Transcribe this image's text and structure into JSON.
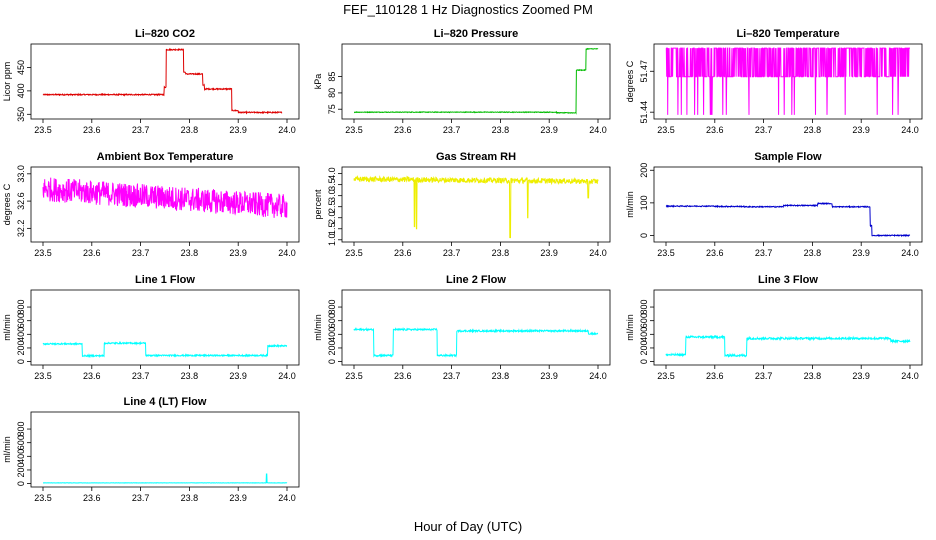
{
  "title": "FEF_110128  1 Hz Diagnostics Zoomed PM",
  "xlabel": "Hour of Day (UTC)",
  "chart_data": [
    {
      "type": "line",
      "title": "Li–820 CO2",
      "ylabel": "Licor ppm",
      "color": "#dd0000",
      "xlim": [
        23.5,
        24.0
      ],
      "ylim": [
        340,
        500
      ],
      "xticks": [
        "23.5",
        "23.6",
        "23.7",
        "23.8",
        "23.9",
        "24.0"
      ],
      "yticks": [
        "350",
        "400",
        "450"
      ],
      "segments": [
        [
          23.5,
          23.748,
          392
        ],
        [
          23.748,
          23.752,
          408
        ],
        [
          23.752,
          23.788,
          488
        ],
        [
          23.788,
          23.792,
          440
        ],
        [
          23.792,
          23.827,
          436
        ],
        [
          23.827,
          23.831,
          412
        ],
        [
          23.831,
          23.887,
          404
        ],
        [
          23.887,
          23.9,
          358
        ],
        [
          23.9,
          23.99,
          354
        ]
      ],
      "noise": 1.2
    },
    {
      "type": "line",
      "title": "Li–820 Pressure",
      "ylabel": "kPa",
      "color": "#00bb00",
      "xlim": [
        23.5,
        24.0
      ],
      "ylim": [
        72,
        95
      ],
      "xticks": [
        "23.5",
        "23.6",
        "23.7",
        "23.8",
        "23.9",
        "24.0"
      ],
      "yticks": [
        "75",
        "80",
        "85"
      ],
      "segments": [
        [
          23.5,
          23.915,
          74.1
        ],
        [
          23.915,
          23.955,
          73.9
        ],
        [
          23.955,
          23.975,
          87
        ],
        [
          23.975,
          24.0,
          93.5
        ]
      ],
      "noise": 0.1
    },
    {
      "type": "line",
      "title": "Li–820 Temperature",
      "ylabel": "degrees C",
      "color": "#ff00ff",
      "xlim": [
        23.5,
        24.0
      ],
      "ylim": [
        51.435,
        51.49
      ],
      "xticks": [
        "23.5",
        "23.6",
        "23.7",
        "23.8",
        "23.9",
        "24.0"
      ],
      "yticks": [
        "51.44",
        "51.47"
      ],
      "levels": [
        51.466,
        51.487,
        51.438
      ],
      "noise": 0
    },
    {
      "type": "line",
      "title": "Ambient Box Temperature",
      "ylabel": "degrees C",
      "color": "#ff00ff",
      "xlim": [
        23.5,
        24.0
      ],
      "ylim": [
        32.0,
        33.1
      ],
      "xticks": [
        "23.5",
        "23.6",
        "23.7",
        "23.8",
        "23.9",
        "24.0"
      ],
      "yticks": [
        "32.2",
        "32.6",
        "33.0"
      ],
      "trend": [
        [
          23.5,
          32.78
        ],
        [
          24.0,
          32.52
        ]
      ],
      "noise": 0.18
    },
    {
      "type": "line",
      "title": "Gas Stream RH",
      "ylabel": "percent",
      "color": "#eeee00",
      "xlim": [
        23.5,
        24.0
      ],
      "ylim": [
        0.9,
        4.3
      ],
      "xticks": [
        "23.5",
        "23.6",
        "23.7",
        "23.8",
        "23.9",
        "24.0"
      ],
      "yticks": [
        "1.0",
        "1.5",
        "2.0",
        "2.5",
        "3.0",
        "3.5",
        "4.0"
      ],
      "trend": [
        [
          23.5,
          3.75
        ],
        [
          24.0,
          3.65
        ]
      ],
      "noise": 0.12,
      "spikes": [
        [
          23.624,
          1.6
        ],
        [
          23.628,
          1.5
        ],
        [
          23.82,
          1.1
        ],
        [
          23.856,
          2.0
        ],
        [
          23.98,
          2.9
        ]
      ]
    },
    {
      "type": "line",
      "title": "Sample Flow",
      "ylabel": "ml/min",
      "color": "#0000cc",
      "xlim": [
        23.5,
        24.0
      ],
      "ylim": [
        -20,
        210
      ],
      "xticks": [
        "23.5",
        "23.6",
        "23.7",
        "23.8",
        "23.9",
        "24.0"
      ],
      "yticks": [
        "0",
        "100",
        "200"
      ],
      "segments": [
        [
          23.5,
          23.6,
          90
        ],
        [
          23.6,
          23.66,
          89
        ],
        [
          23.66,
          23.74,
          88
        ],
        [
          23.74,
          23.81,
          92
        ],
        [
          23.81,
          23.84,
          98
        ],
        [
          23.84,
          23.918,
          88
        ],
        [
          23.918,
          23.922,
          30
        ],
        [
          23.922,
          24.0,
          0
        ]
      ],
      "noise": 1.5
    },
    {
      "type": "line",
      "title": "Line 1 Flow",
      "ylabel": "ml/min",
      "color": "#00ffff",
      "xlim": [
        23.5,
        24.0
      ],
      "ylim": [
        -50,
        1050
      ],
      "xticks": [
        "23.5",
        "23.6",
        "23.7",
        "23.8",
        "23.9",
        "24.0"
      ],
      "yticks": [
        "0",
        "200",
        "400",
        "600",
        "800"
      ],
      "segments": [
        [
          23.5,
          23.58,
          260
        ],
        [
          23.58,
          23.625,
          85
        ],
        [
          23.625,
          23.71,
          270
        ],
        [
          23.71,
          23.96,
          90
        ],
        [
          23.96,
          24.0,
          230
        ]
      ],
      "noise": 10
    },
    {
      "type": "line",
      "title": "Line 2 Flow",
      "ylabel": "ml/min",
      "color": "#00ffff",
      "xlim": [
        23.5,
        24.0
      ],
      "ylim": [
        -50,
        1050
      ],
      "xticks": [
        "23.5",
        "23.6",
        "23.7",
        "23.8",
        "23.9",
        "24.0"
      ],
      "yticks": [
        "0",
        "200",
        "400",
        "600",
        "800"
      ],
      "segments": [
        [
          23.5,
          23.54,
          470
        ],
        [
          23.54,
          23.58,
          90
        ],
        [
          23.58,
          23.67,
          470
        ],
        [
          23.67,
          23.71,
          90
        ],
        [
          23.71,
          23.98,
          450
        ],
        [
          23.98,
          24.0,
          410
        ]
      ],
      "noise": 12
    },
    {
      "type": "line",
      "title": "Line 3 Flow",
      "ylabel": "ml/min",
      "color": "#00ffff",
      "xlim": [
        23.5,
        24.0
      ],
      "ylim": [
        -50,
        1050
      ],
      "xticks": [
        "23.5",
        "23.6",
        "23.7",
        "23.8",
        "23.9",
        "24.0"
      ],
      "yticks": [
        "0",
        "200",
        "400",
        "600",
        "800"
      ],
      "segments": [
        [
          23.5,
          23.54,
          100
        ],
        [
          23.54,
          23.62,
          360
        ],
        [
          23.62,
          23.665,
          90
        ],
        [
          23.665,
          23.96,
          340
        ],
        [
          23.96,
          24.0,
          300
        ]
      ],
      "noise": 15
    },
    {
      "type": "line",
      "title": "Line 4 (LT) Flow",
      "ylabel": "ml/min",
      "color": "#00ffff",
      "xlim": [
        23.5,
        24.0
      ],
      "ylim": [
        -50,
        1050
      ],
      "xticks": [
        "23.5",
        "23.6",
        "23.7",
        "23.8",
        "23.9",
        "24.0"
      ],
      "yticks": [
        "0",
        "200",
        "400",
        "600",
        "800"
      ],
      "segments": [
        [
          23.5,
          24.0,
          10
        ]
      ],
      "noise": 2,
      "spikes": [
        [
          23.958,
          140
        ]
      ]
    }
  ]
}
